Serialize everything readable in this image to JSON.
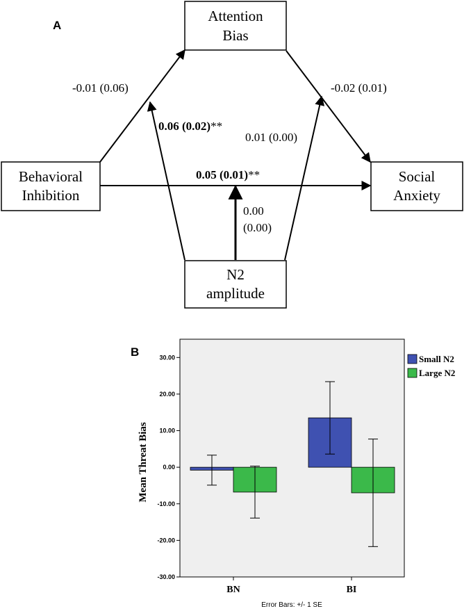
{
  "panel_a": {
    "label": "A",
    "nodes": {
      "attention_bias": [
        "Attention",
        "Bias"
      ],
      "behavioral_inhibition": [
        "Behavioral",
        "Inhibition"
      ],
      "social_anxiety": [
        "Social",
        "Anxiety"
      ],
      "n2_amplitude": [
        "N2",
        "amplitude"
      ]
    },
    "paths": {
      "bi_to_ab": "-0.01 (0.06)",
      "ab_to_sa": "-0.02 (0.01)",
      "n2_mod_a": "0.06 (0.02)**",
      "n2_mod_a_bold": "0.06 (0.02)",
      "n2_mod_a_stars": "**",
      "n2_mod_b": "0.01 (0.00)",
      "bi_to_sa": "0.05 (0.01)**",
      "bi_to_sa_bold": "0.05 (0.01)",
      "bi_to_sa_stars": "**",
      "n2_mod_c_line1": "0.00",
      "n2_mod_c_line2": "(0.00)"
    }
  },
  "panel_b": {
    "label": "B",
    "footer": "Error Bars: +/- 1 SE",
    "colors": {
      "small": "#3f51b1",
      "large": "#3bb94a",
      "plot_bg": "#efefef"
    }
  },
  "chart_data": {
    "type": "bar",
    "categories": [
      "BN",
      "BI"
    ],
    "series": [
      {
        "name": "Small N2",
        "values": [
          -0.8,
          13.5
        ],
        "error": [
          4.1,
          9.9
        ]
      },
      {
        "name": "Large N2",
        "values": [
          -6.8,
          -7.0
        ],
        "error": [
          7.1,
          14.7
        ]
      }
    ],
    "ylabel": "Mean Threat Bias",
    "ylim": [
      -30,
      35
    ],
    "yticks": [
      30,
      20,
      10,
      0,
      -10,
      -20,
      -30
    ],
    "ytick_labels": [
      "30.00",
      "20.00",
      "10.00",
      "0.00",
      "-10.00",
      "-20.00",
      "-30.00"
    ],
    "legend": "top-right"
  }
}
